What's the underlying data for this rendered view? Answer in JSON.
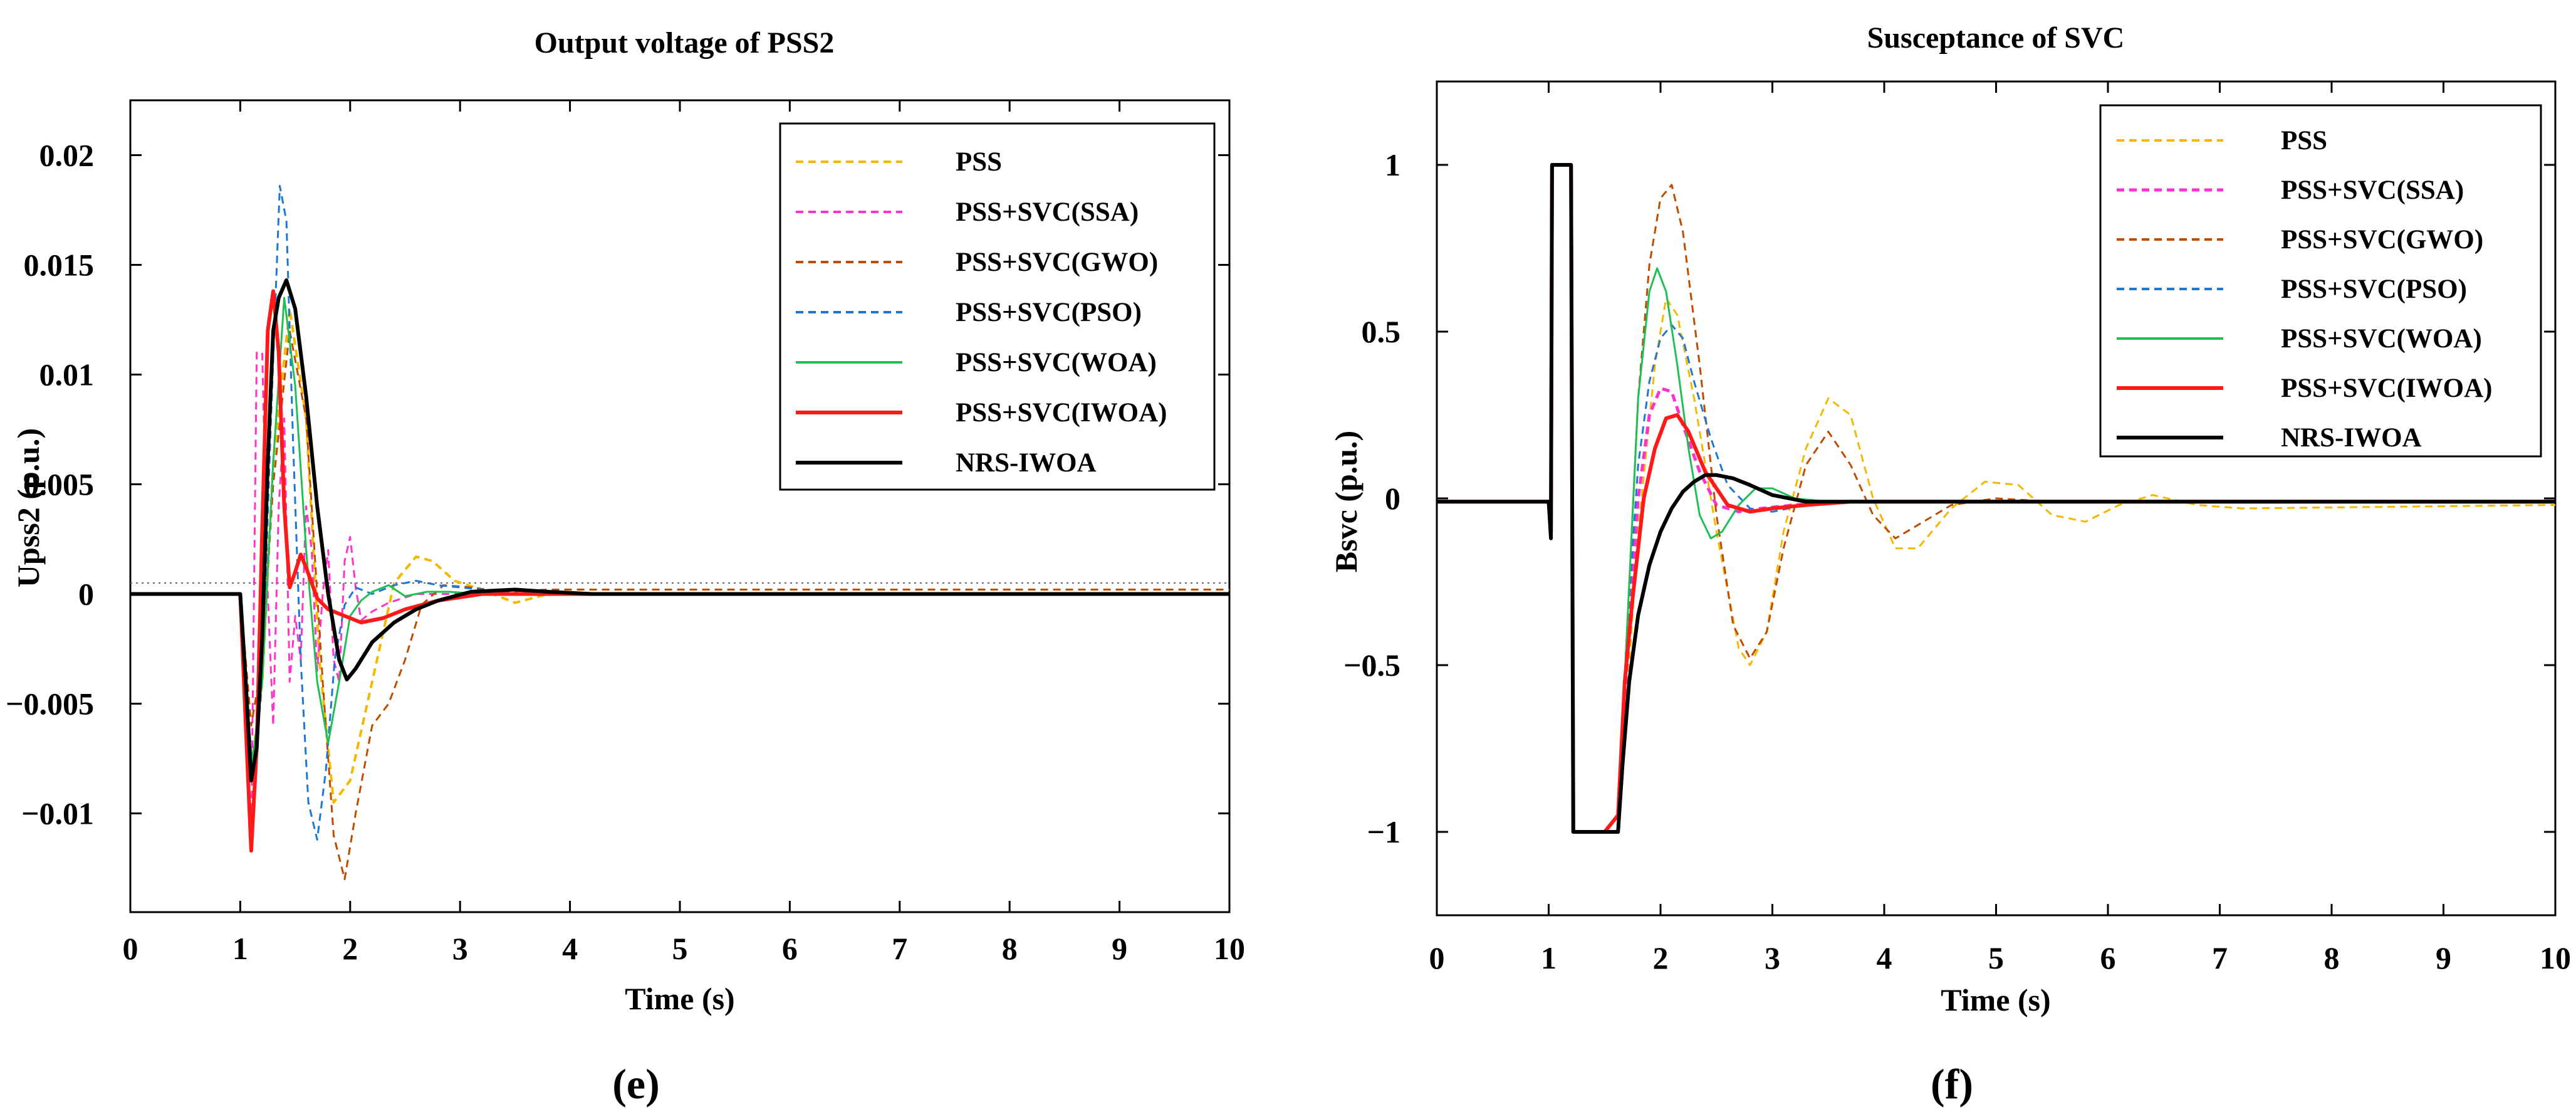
{
  "colors": {
    "PSS": "#f5b800",
    "SSA": "#ff33cc",
    "GWO": "#c04a00",
    "PSO": "#1f77d4",
    "WOA": "#1fbf55",
    "IWOA": "#ff1a1a",
    "NRS": "#000000"
  },
  "chart_data": [
    {
      "type": "line",
      "panel": "(e)",
      "title": "Output voltage of PSS2",
      "xlabel": "Time (s)",
      "ylabel": "Upss2 (p.u.)",
      "xlim": [
        0,
        10
      ],
      "ylim": [
        -0.0145,
        0.0225
      ],
      "xticks": [
        0,
        1,
        2,
        3,
        4,
        5,
        6,
        7,
        8,
        9,
        10
      ],
      "xtick_labels": [
        "0",
        "1",
        "2",
        "3",
        "4",
        "5",
        "6",
        "7",
        "8",
        "9",
        "10"
      ],
      "yticks": [
        0.02,
        0.015,
        0.01,
        0.005,
        0,
        -0.005,
        -0.01
      ],
      "ytick_labels": [
        "0.02",
        "0.015",
        "0.01",
        "0.005",
        "0",
        "−0.005",
        "−0.01"
      ],
      "legend_position": "top-right",
      "series": [
        {
          "name": "PSS",
          "key": "PSS",
          "dash": "dashed",
          "width": 4,
          "x": [
            0,
            1.0,
            1.1,
            1.2,
            1.3,
            1.45,
            1.6,
            1.72,
            1.85,
            2.0,
            2.2,
            2.4,
            2.6,
            2.75,
            2.95,
            3.2,
            3.5,
            3.8,
            4.2,
            10
          ],
          "y": [
            0,
            0,
            -0.008,
            -0.004,
            0.006,
            0.013,
            0.008,
            -0.003,
            -0.0095,
            -0.0085,
            -0.004,
            0.0005,
            0.0017,
            0.0015,
            0.0006,
            0.0002,
            -0.0004,
            0,
            0,
            0
          ]
        },
        {
          "name": "PSS+SVC(SSA)",
          "key": "SSA",
          "dash": "dashed",
          "width": 3,
          "x": [
            0,
            1.0,
            1.05,
            1.1,
            1.15,
            1.2,
            1.25,
            1.3,
            1.35,
            1.4,
            1.45,
            1.5,
            1.55,
            1.6,
            1.65,
            1.7,
            1.75,
            1.8,
            1.85,
            1.9,
            1.95,
            2.0,
            2.05,
            2.1,
            2.2,
            2.35,
            2.6,
            3.0,
            10
          ],
          "y": [
            0,
            0,
            -0.005,
            -0.011,
            0.011,
            0.011,
            0.0,
            -0.006,
            0.004,
            0.008,
            -0.004,
            -0.001,
            -0.003,
            0.004,
            0.002,
            -0.0035,
            0.0,
            0.002,
            -0.003,
            -0.004,
            0.0015,
            0.0026,
            0.0003,
            -0.0012,
            -0.0008,
            -0.0004,
            0,
            0,
            0
          ]
        },
        {
          "name": "PSS+SVC(GWO)",
          "key": "GWO",
          "dash": "dashed",
          "width": 3,
          "x": [
            0,
            1.0,
            1.1,
            1.2,
            1.3,
            1.45,
            1.6,
            1.75,
            1.85,
            1.95,
            2.05,
            2.2,
            2.35,
            2.5,
            2.65,
            2.85,
            3.1,
            3.4,
            3.8,
            4.5,
            10
          ],
          "y": [
            0,
            0,
            -0.006,
            -0.003,
            0.005,
            0.012,
            0.008,
            -0.004,
            -0.011,
            -0.013,
            -0.01,
            -0.006,
            -0.005,
            -0.003,
            -0.0005,
            0.0004,
            0.0003,
            0.0001,
            0.0002,
            0.0002,
            0.0002
          ]
        },
        {
          "name": "PSS+SVC(PSO)",
          "key": "PSO",
          "dash": "dashed",
          "width": 3,
          "x": [
            0,
            1.0,
            1.05,
            1.12,
            1.2,
            1.28,
            1.36,
            1.42,
            1.48,
            1.55,
            1.62,
            1.7,
            1.78,
            1.86,
            1.95,
            2.05,
            2.2,
            2.4,
            2.6,
            2.8,
            3.2,
            3.6,
            10
          ],
          "y": [
            0,
            0,
            -0.004,
            -0.0085,
            -0.004,
            0.008,
            0.0186,
            0.017,
            0.007,
            -0.003,
            -0.0095,
            -0.0112,
            -0.008,
            -0.003,
            -0.0005,
            0.0003,
            0,
            0.0004,
            0.0006,
            0.0004,
            0.0002,
            0,
            0
          ]
        },
        {
          "name": "PSS+SVC(WOA)",
          "key": "WOA",
          "dash": "solid",
          "width": 3,
          "x": [
            0,
            1.0,
            1.1,
            1.2,
            1.3,
            1.4,
            1.5,
            1.6,
            1.7,
            1.8,
            1.9,
            2.0,
            2.1,
            2.2,
            2.35,
            2.5,
            2.7,
            2.9,
            3.2,
            3.6,
            10
          ],
          "y": [
            0,
            0,
            -0.008,
            -0.004,
            0.006,
            0.0135,
            0.0095,
            0.002,
            -0.004,
            -0.0068,
            -0.004,
            -0.001,
            -0.0003,
            0.0001,
            0.0004,
            -0.0001,
            0.0001,
            0.0001,
            0,
            0,
            0
          ]
        },
        {
          "name": "PSS+SVC(IWOA)",
          "key": "IWOA",
          "dash": "solid",
          "width": 6,
          "x": [
            0,
            1.0,
            1.05,
            1.1,
            1.15,
            1.2,
            1.25,
            1.3,
            1.35,
            1.4,
            1.45,
            1.5,
            1.55,
            1.6,
            1.7,
            1.8,
            1.95,
            2.1,
            2.3,
            2.5,
            2.8,
            3.2,
            3.6,
            10
          ],
          "y": [
            0,
            0,
            -0.006,
            -0.0117,
            -0.007,
            0.003,
            0.012,
            0.0138,
            0.011,
            0.004,
            0.0003,
            0.001,
            0.0018,
            0.0012,
            -0.0002,
            -0.0007,
            -0.001,
            -0.0013,
            -0.0011,
            -0.0007,
            -0.0003,
            0,
            0,
            0
          ]
        },
        {
          "name": "NRS-IWOA",
          "key": "NRS",
          "dash": "solid",
          "width": 6,
          "x": [
            0,
            1.0,
            1.05,
            1.1,
            1.15,
            1.2,
            1.25,
            1.3,
            1.35,
            1.42,
            1.5,
            1.6,
            1.7,
            1.8,
            1.9,
            1.97,
            2.05,
            2.2,
            2.4,
            2.6,
            2.8,
            3.1,
            3.5,
            3.8,
            4.2,
            10
          ],
          "y": [
            0,
            0,
            -0.004,
            -0.0085,
            -0.007,
            -0.002,
            0.006,
            0.012,
            0.0135,
            0.0143,
            0.013,
            0.009,
            0.004,
            0.0,
            -0.003,
            -0.0039,
            -0.0034,
            -0.0022,
            -0.0013,
            -0.0007,
            -0.0003,
            0.0001,
            0.0002,
            0.0001,
            0,
            0
          ]
        }
      ]
    },
    {
      "type": "line",
      "panel": "(f)",
      "title": "Susceptance of SVC",
      "xlabel": "Time (s)",
      "ylabel": "Bsvc (p.u.)",
      "xlim": [
        0,
        10
      ],
      "ylim": [
        -1.25,
        1.25
      ],
      "xticks": [
        0,
        1,
        2,
        3,
        4,
        5,
        6,
        7,
        8,
        9,
        10
      ],
      "xtick_labels": [
        "0",
        "1",
        "2",
        "3",
        "4",
        "5",
        "6",
        "7",
        "8",
        "9",
        "10"
      ],
      "yticks": [
        1,
        0.5,
        0,
        -0.5,
        -1
      ],
      "ytick_labels": [
        "1",
        "0.5",
        "0",
        "−0.5",
        "−1"
      ],
      "legend_position": "top-right",
      "series": [
        {
          "name": "PSS",
          "key": "PSS",
          "dash": "dashed",
          "width": 3,
          "x": [
            0,
            1.0,
            1.02,
            1.03,
            1.2,
            1.22,
            1.3,
            1.5,
            1.62,
            1.7,
            1.8,
            1.95,
            2.05,
            2.15,
            2.3,
            2.5,
            2.7,
            2.8,
            2.95,
            3.1,
            3.3,
            3.5,
            3.7,
            3.9,
            4.1,
            4.3,
            4.6,
            4.9,
            5.2,
            5.5,
            5.8,
            6.1,
            6.4,
            6.8,
            7.2,
            10
          ],
          "y": [
            -0.01,
            -0.01,
            -0.1,
            1,
            1,
            -1,
            -1,
            -1,
            -0.95,
            -0.6,
            -0.1,
            0.4,
            0.6,
            0.55,
            0.3,
            -0.1,
            -0.45,
            -0.5,
            -0.4,
            -0.1,
            0.15,
            0.3,
            0.25,
            0.0,
            -0.15,
            -0.15,
            -0.03,
            0.05,
            0.04,
            -0.05,
            -0.07,
            -0.02,
            0.01,
            -0.02,
            -0.03,
            -0.02
          ]
        },
        {
          "name": "PSS+SVC(SSA)",
          "key": "SSA",
          "dash": "dashed",
          "width": 5,
          "x": [
            0,
            1.0,
            1.02,
            1.03,
            1.2,
            1.22,
            1.3,
            1.5,
            1.62,
            1.7,
            1.8,
            1.9,
            2.0,
            2.1,
            2.2,
            2.35,
            2.5,
            2.7,
            2.9,
            3.2,
            3.6,
            10
          ],
          "y": [
            -0.01,
            -0.01,
            -0.1,
            1,
            1,
            -1,
            -1,
            -1,
            -0.95,
            -0.5,
            0,
            0.25,
            0.33,
            0.32,
            0.22,
            0.08,
            -0.02,
            -0.04,
            -0.03,
            -0.02,
            -0.01,
            -0.01
          ]
        },
        {
          "name": "PSS+SVC(GWO)",
          "key": "GWO",
          "dash": "dashed",
          "width": 3,
          "x": [
            0,
            1.0,
            1.02,
            1.03,
            1.2,
            1.22,
            1.3,
            1.5,
            1.62,
            1.7,
            1.8,
            1.9,
            2.0,
            2.1,
            2.2,
            2.35,
            2.5,
            2.65,
            2.8,
            2.95,
            3.1,
            3.3,
            3.5,
            3.7,
            3.9,
            4.1,
            4.3,
            4.6,
            5.0,
            5.5,
            10
          ],
          "y": [
            -0.01,
            -0.01,
            -0.1,
            1,
            1,
            -1,
            -1,
            -1,
            -0.95,
            -0.4,
            0.3,
            0.7,
            0.9,
            0.94,
            0.8,
            0.4,
            -0.05,
            -0.38,
            -0.48,
            -0.4,
            -0.15,
            0.1,
            0.2,
            0.1,
            -0.05,
            -0.12,
            -0.08,
            -0.02,
            0.0,
            -0.01,
            -0.01
          ]
        },
        {
          "name": "PSS+SVC(PSO)",
          "key": "PSO",
          "dash": "dashed",
          "width": 3,
          "x": [
            0,
            1.0,
            1.02,
            1.03,
            1.2,
            1.22,
            1.3,
            1.5,
            1.62,
            1.7,
            1.8,
            1.9,
            2.0,
            2.1,
            2.2,
            2.3,
            2.45,
            2.6,
            2.8,
            3.0,
            3.3,
            3.6,
            10
          ],
          "y": [
            -0.01,
            -0.01,
            -0.1,
            1,
            1,
            -1,
            -1,
            -1,
            -0.95,
            -0.4,
            0.1,
            0.35,
            0.48,
            0.52,
            0.48,
            0.35,
            0.18,
            0.04,
            -0.03,
            -0.04,
            -0.02,
            -0.01,
            -0.01
          ]
        },
        {
          "name": "PSS+SVC(WOA)",
          "key": "WOA",
          "dash": "solid",
          "width": 3,
          "x": [
            0,
            1.0,
            1.02,
            1.03,
            1.2,
            1.22,
            1.3,
            1.5,
            1.62,
            1.7,
            1.8,
            1.9,
            1.97,
            2.05,
            2.15,
            2.25,
            2.35,
            2.45,
            2.55,
            2.7,
            2.85,
            3.0,
            3.2,
            3.5,
            10
          ],
          "y": [
            -0.01,
            -0.01,
            -0.1,
            1,
            1,
            -1,
            -1,
            -1,
            -0.95,
            -0.4,
            0.3,
            0.62,
            0.69,
            0.62,
            0.4,
            0.15,
            -0.05,
            -0.12,
            -0.1,
            -0.02,
            0.03,
            0.03,
            0.0,
            -0.01,
            -0.01
          ]
        },
        {
          "name": "PSS+SVC(IWOA)",
          "key": "IWOA",
          "dash": "solid",
          "width": 6,
          "x": [
            0,
            1.0,
            1.02,
            1.03,
            1.2,
            1.22,
            1.3,
            1.5,
            1.62,
            1.68,
            1.75,
            1.85,
            1.95,
            2.05,
            2.15,
            2.25,
            2.4,
            2.6,
            2.8,
            3.0,
            3.3,
            3.7,
            4.2,
            10
          ],
          "y": [
            -0.01,
            -0.01,
            -0.1,
            1,
            1,
            -1,
            -1,
            -1,
            -0.95,
            -0.55,
            -0.3,
            0.0,
            0.15,
            0.24,
            0.25,
            0.2,
            0.08,
            -0.02,
            -0.04,
            -0.03,
            -0.02,
            -0.01,
            -0.01,
            -0.01
          ]
        },
        {
          "name": "NRS-IWOA",
          "key": "NRS",
          "dash": "solid",
          "width": 6,
          "x": [
            0,
            1.0,
            1.02,
            1.03,
            1.2,
            1.22,
            1.3,
            1.5,
            1.62,
            1.66,
            1.72,
            1.8,
            1.9,
            2.0,
            2.1,
            2.2,
            2.3,
            2.4,
            2.5,
            2.65,
            2.8,
            3.0,
            3.3,
            3.7,
            4.2,
            10
          ],
          "y": [
            -0.01,
            -0.01,
            -0.12,
            1,
            1,
            -1,
            -1,
            -1,
            -1,
            -0.8,
            -0.55,
            -0.35,
            -0.2,
            -0.1,
            -0.03,
            0.02,
            0.05,
            0.07,
            0.07,
            0.06,
            0.04,
            0.01,
            -0.01,
            -0.01,
            -0.01,
            -0.01
          ]
        }
      ]
    }
  ]
}
